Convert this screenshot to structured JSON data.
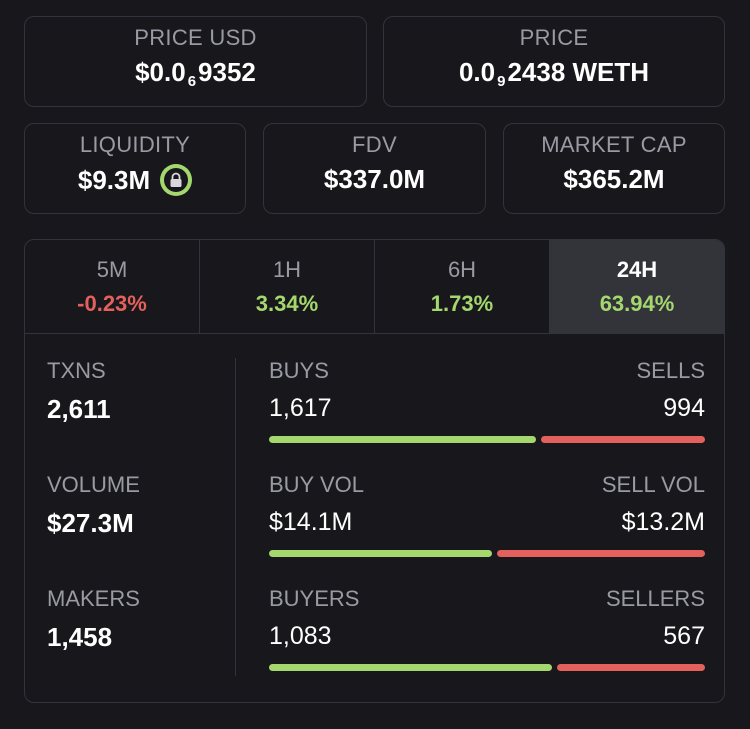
{
  "price_usd": {
    "label": "PRICE USD",
    "prefix": "$0.0",
    "zeros": "6",
    "digits": "9352"
  },
  "price_weth": {
    "label": "PRICE",
    "prefix": "0.0",
    "zeros": "9",
    "digits": "2438 WETH"
  },
  "liquidity": {
    "label": "LIQUIDITY",
    "value": "$9.3M",
    "icon": "lock-icon"
  },
  "fdv": {
    "label": "FDV",
    "value": "$337.0M"
  },
  "market_cap": {
    "label": "MARKET CAP",
    "value": "$365.2M"
  },
  "tabs": [
    {
      "label": "5M",
      "change": "-0.23%",
      "trend": "negative"
    },
    {
      "label": "1H",
      "change": "3.34%",
      "trend": "positive"
    },
    {
      "label": "6H",
      "change": "1.73%",
      "trend": "positive"
    },
    {
      "label": "24H",
      "change": "63.94%",
      "trend": "positive",
      "active": true
    }
  ],
  "stats": {
    "txns": {
      "label": "TXNS",
      "value": "2,611"
    },
    "volume": {
      "label": "VOLUME",
      "value": "$27.3M"
    },
    "makers": {
      "label": "MAKERS",
      "value": "1,458"
    }
  },
  "breakdown": {
    "txns": {
      "left_label": "BUYS",
      "left_value": "1,617",
      "right_label": "SELLS",
      "right_value": "994",
      "buy_fraction": 0.619
    },
    "volume": {
      "left_label": "BUY VOL",
      "left_value": "$14.1M",
      "right_label": "SELL VOL",
      "right_value": "$13.2M",
      "buy_fraction": 0.517
    },
    "makers": {
      "left_label": "BUYERS",
      "left_value": "1,083",
      "right_label": "SELLERS",
      "right_value": "567",
      "buy_fraction": 0.656
    }
  },
  "colors": {
    "background": "#17171c",
    "positive": "#a4d86e",
    "negative": "#e4605c",
    "muted_text": "#9a9aa3",
    "border": "#33333d"
  }
}
